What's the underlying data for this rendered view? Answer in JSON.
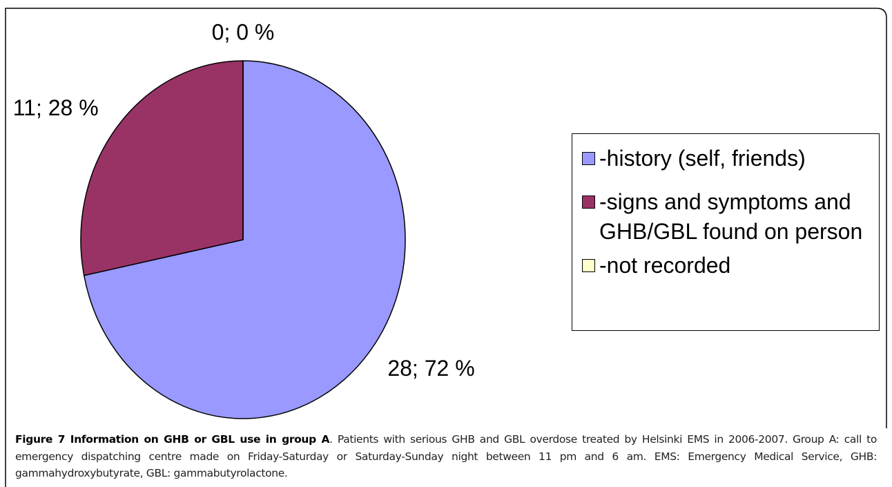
{
  "chart_data": {
    "type": "pie",
    "categories": [
      "-history (self, friends)",
      "-signs and symptoms and GHB/GBL found on person",
      "-not recorded"
    ],
    "values": [
      28,
      11,
      0
    ],
    "value_labels": [
      "28; 72 %",
      "11; 28 %",
      "0; 0 %"
    ],
    "colors": [
      "#9999ff",
      "#993366",
      "#ffffcc"
    ],
    "legend": "right"
  },
  "caption": {
    "title": "Figure 7 Information on GHB or GBL use in group A",
    "text": ". Patients with serious GHB and GBL overdose treated by Helsinki EMS in 2006-2007. Group A: call to emergency dispatching centre made on Friday-Saturday or Saturday-Sunday night between 11 pm and 6 am. EMS: Emergency Medical Service, GHB: gammahydroxybutyrate, GBL: gammabutyrolactone."
  }
}
